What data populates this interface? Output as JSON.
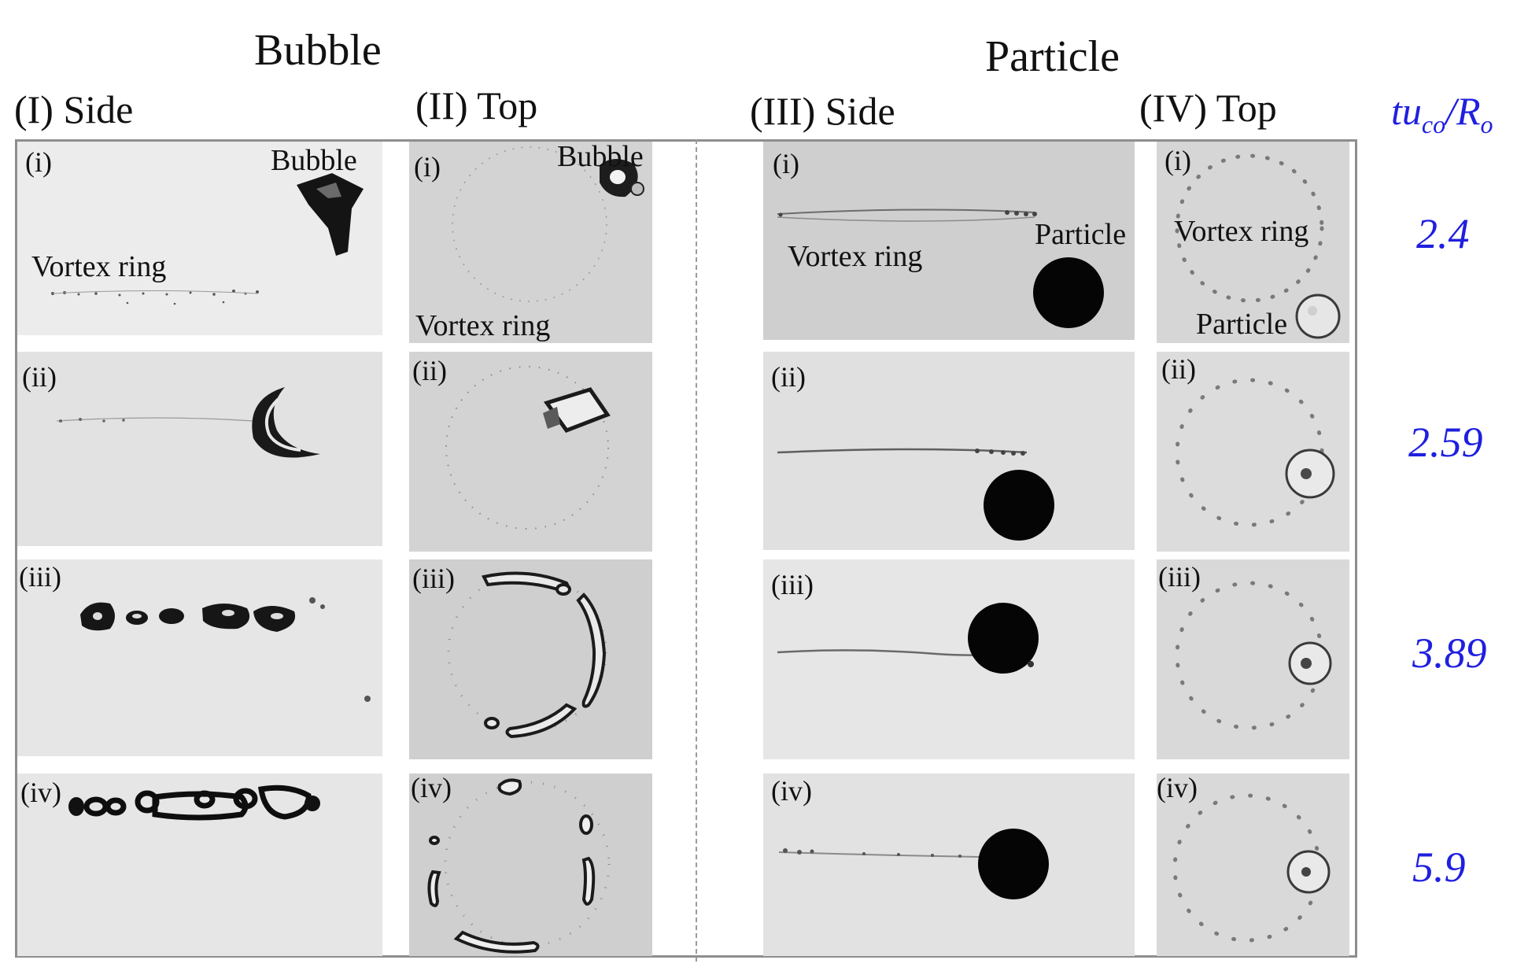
{
  "titles": {
    "bubble": "Bubble",
    "particle": "Particle"
  },
  "columns": {
    "c1": "(I) Side",
    "c2": "(II) Top",
    "c3": "(III) Side",
    "c4": "(IV) Top"
  },
  "time_label": {
    "base": "tu",
    "sub1": "co",
    "slash": "/R",
    "sub2": "o"
  },
  "rows": [
    {
      "label": "(i)",
      "time": "2.4"
    },
    {
      "label": "(ii)",
      "time": "2.59"
    },
    {
      "label": "(iii)",
      "time": "3.89"
    },
    {
      "label": "(iv)",
      "time": "5.9"
    }
  ],
  "annotations": {
    "bubble": "Bubble",
    "vortex_ring": "Vortex ring",
    "particle": "Particle"
  },
  "colors": {
    "time_text": "#1f1fe0",
    "frame": "#8e8e8e"
  }
}
